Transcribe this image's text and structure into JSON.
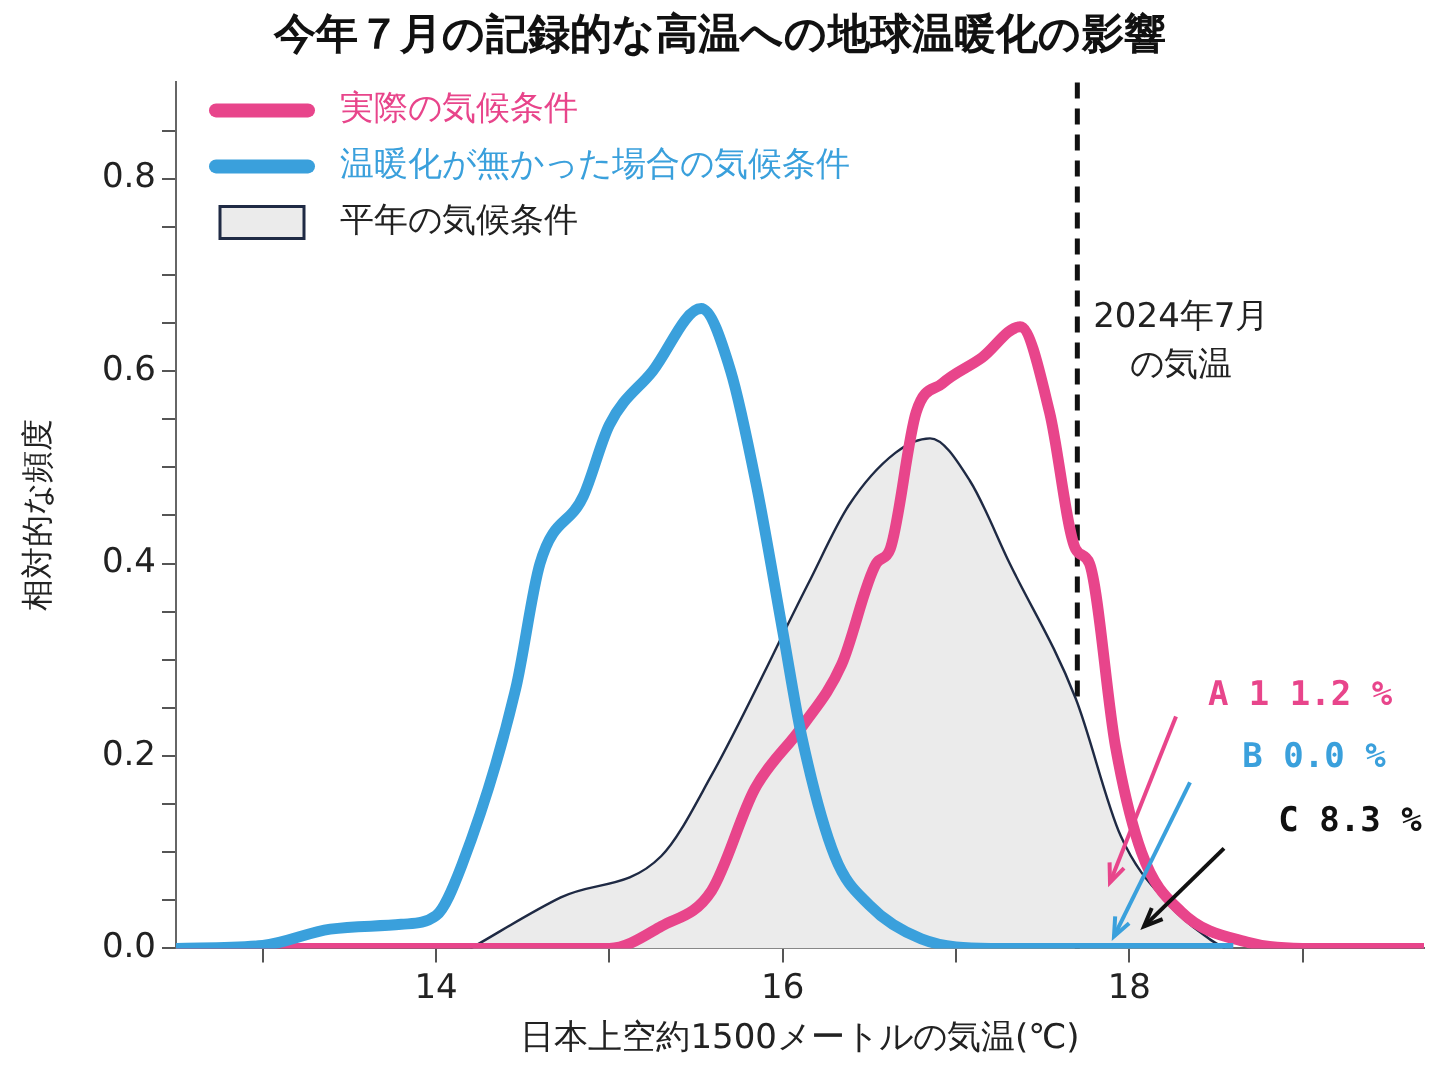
{
  "chart_data": {
    "type": "line",
    "title": "今年７月の記録的な高温への地球温暖化の影響",
    "xlabel": "日本上空約1500メートルの気温(℃)",
    "ylabel": "相対的な頻度",
    "series": [
      {
        "name": "平年の気候条件",
        "type": "area",
        "color": "#ebebeb",
        "x": [
          14.2,
          14.72,
          15.3,
          15.59,
          16.15,
          16.38,
          16.65,
          16.85,
          17.08,
          17.31,
          17.69,
          17.95,
          18.23,
          18.46,
          18.55
        ],
        "values": [
          0,
          0.053,
          0.096,
          0.18,
          0.38,
          0.46,
          0.515,
          0.53,
          0.486,
          0.4,
          0.26,
          0.117,
          0.045,
          0.01,
          0
        ]
      },
      {
        "name": "温暖化が無かった場合の気候条件",
        "color": "#3aa0dc",
        "x": [
          12.5,
          13.0,
          13.39,
          13.8,
          14.0,
          14.15,
          14.46,
          14.6,
          14.85,
          15.0,
          15.25,
          15.53,
          15.7,
          15.85,
          16.0,
          16.11,
          16.3,
          16.5,
          16.8,
          17.2,
          18.6
        ],
        "values": [
          0,
          0.003,
          0.02,
          0.025,
          0.034,
          0.087,
          0.27,
          0.4,
          0.47,
          0.544,
          0.6,
          0.665,
          0.6,
          0.48,
          0.33,
          0.22,
          0.096,
          0.045,
          0.01,
          0,
          0
        ]
      },
      {
        "name": "実際の気候条件",
        "color": "#e8458b",
        "x": [
          12.5,
          15.0,
          15.3,
          15.59,
          15.84,
          16.11,
          16.34,
          16.54,
          16.62,
          16.77,
          16.92,
          17.15,
          17.37,
          17.54,
          17.69,
          17.77,
          17.92,
          18.07,
          18.3,
          18.69,
          19.0,
          19.7
        ],
        "values": [
          0,
          0,
          0.023,
          0.06,
          0.166,
          0.23,
          0.295,
          0.4,
          0.415,
          0.557,
          0.587,
          0.614,
          0.646,
          0.557,
          0.415,
          0.4,
          0.21,
          0.1,
          0.038,
          0.006,
          0,
          0
        ]
      }
    ],
    "xlim": [
      12.5,
      19.7
    ],
    "xticks": [
      {
        "value": 13,
        "label": null
      },
      14,
      {
        "value": 15,
        "label": null
      },
      16,
      {
        "value": 17,
        "label": null
      },
      18,
      {
        "value": 19,
        "label": null
      }
    ],
    "ylim": [
      0,
      0.9
    ],
    "yticks": [
      {
        "value": 0,
        "label": "0.0"
      },
      {
        "value": 0.05,
        "label": null
      },
      {
        "value": 0.1,
        "label": null
      },
      {
        "value": 0.15,
        "label": null
      },
      {
        "value": 0.2,
        "label": "0.2"
      },
      {
        "value": 0.25,
        "label": null
      },
      {
        "value": 0.3,
        "label": null
      },
      {
        "value": 0.35,
        "label": null
      },
      {
        "value": 0.4,
        "label": "0.4"
      },
      {
        "value": 0.45,
        "label": null
      },
      {
        "value": 0.5,
        "label": null
      },
      {
        "value": 0.55,
        "label": null
      },
      {
        "value": 0.6,
        "label": "0.6"
      },
      {
        "value": 0.65,
        "label": null
      },
      {
        "value": 0.7,
        "label": null
      },
      {
        "value": 0.75,
        "label": null
      },
      {
        "value": 0.8,
        "label": "0.8"
      },
      {
        "value": 0.85,
        "label": null
      }
    ],
    "ref_lines": [
      {
        "axis": "x",
        "value": 17.7,
        "label": "2024年7月の気温",
        "color": "#111111",
        "line_style": "dashed"
      }
    ],
    "annotations": [
      "A 1 1.2 %",
      "B 0.0 %",
      "C 8.3 %"
    ],
    "grid": false,
    "legend": "top left",
    "marker": "none",
    "line_style": "solid"
  }
}
